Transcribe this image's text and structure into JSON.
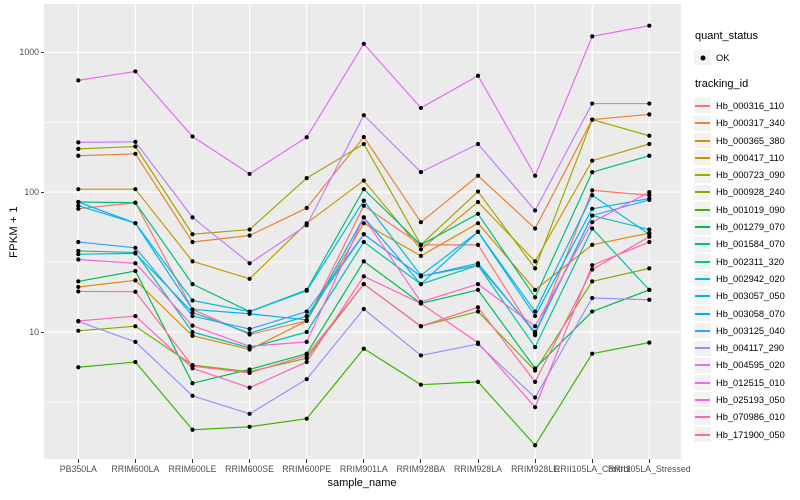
{
  "chart_data": {
    "type": "line",
    "title": "",
    "xlabel": "sample_name",
    "ylabel": "FPKM + 1",
    "y_scale": "log10",
    "grid": true,
    "legend_position": "right",
    "ylim": [
      1.4,
      1900
    ],
    "y_tick_labels": [
      "1000",
      "100",
      "10"
    ],
    "y_tick_values": [
      1000,
      100,
      10
    ],
    "y_minor_values": [
      316.23,
      31.62,
      3.162
    ],
    "categories": [
      "PB350LA",
      "RRIM600LA",
      "RRIM600LE",
      "RRIM600SE",
      "RRIM600PE",
      "RRIM901LA",
      "RRIM928BA",
      "RRIM928LA",
      "RRIM928LE",
      "RRII105LA_Control",
      "RRII105LA_Stressed"
    ],
    "marker": {
      "shape": "circle",
      "color": "#000000"
    },
    "series": [
      {
        "name": "Hb_000316_110",
        "color": "#F8766D",
        "values": [
          76,
          84,
          14.5,
          9.6,
          12,
          80,
          42,
          42,
          9.5,
          103,
          95
        ]
      },
      {
        "name": "Hb_000317_340",
        "color": "#EA8331",
        "values": [
          182,
          188,
          44,
          49,
          77,
          248,
          61,
          131,
          55,
          330,
          360
        ]
      },
      {
        "name": "Hb_000365_380",
        "color": "#D89000",
        "values": [
          21,
          23.4,
          9.4,
          7.5,
          12,
          60,
          35,
          60,
          20,
          42,
          51
        ]
      },
      {
        "name": "Hb_000417_110",
        "color": "#C09B00",
        "values": [
          105,
          105,
          32,
          24,
          60,
          121,
          39,
          85,
          32,
          168,
          221
        ]
      },
      {
        "name": "Hb_000723_090",
        "color": "#A3A500",
        "values": [
          204,
          212,
          50,
          54,
          126,
          221,
          42,
          101,
          28.5,
          330,
          253
        ]
      },
      {
        "name": "Hb_000928_240",
        "color": "#7CAE00",
        "values": [
          10.2,
          11,
          5.8,
          5.2,
          6.5,
          22,
          11,
          14,
          5.3,
          23,
          28.5
        ]
      },
      {
        "name": "Hb_001019_090",
        "color": "#39B600",
        "values": [
          5.6,
          6.1,
          2.0,
          2.1,
          2.4,
          7.6,
          4.2,
          4.4,
          1.55,
          7.0,
          8.4
        ]
      },
      {
        "name": "Hb_001279_070",
        "color": "#00BB4E",
        "values": [
          23,
          27.3,
          4.3,
          5.4,
          7,
          32,
          16,
          20,
          5.5,
          14,
          20
        ]
      },
      {
        "name": "Hb_001584_070",
        "color": "#00BF7D",
        "values": [
          85,
          84,
          22,
          14,
          20,
          105,
          42,
          70,
          17.7,
          139,
          182
        ]
      },
      {
        "name": "Hb_002311_320",
        "color": "#00C1A3",
        "values": [
          38,
          37,
          10,
          7.7,
          10,
          44,
          22,
          30,
          7.8,
          55,
          20
        ]
      },
      {
        "name": "Hb_002942_020",
        "color": "#00BFC4",
        "values": [
          36,
          36.5,
          13.8,
          9.8,
          13,
          50,
          25,
          31,
          9.8,
          68,
          54
        ]
      },
      {
        "name": "Hb_003057_050",
        "color": "#00BAE0",
        "values": [
          80,
          60,
          16.8,
          14,
          19.7,
          87,
          25.4,
          52,
          14,
          95,
          50
        ]
      },
      {
        "name": "Hb_003058_070",
        "color": "#00B0F6",
        "values": [
          85,
          60,
          14.5,
          13.5,
          12.2,
          66,
          22,
          52,
          13,
          76,
          90
        ]
      },
      {
        "name": "Hb_003125_040",
        "color": "#35A2FF",
        "values": [
          44,
          40,
          13,
          10.5,
          14,
          50,
          25,
          30,
          10,
          68,
          88
        ]
      },
      {
        "name": "Hb_004117_290",
        "color": "#9590FF",
        "values": [
          11.9,
          8.5,
          3.5,
          2.6,
          4.6,
          14.6,
          6.8,
          8.2,
          3.4,
          17.5,
          17
        ]
      },
      {
        "name": "Hb_004595_020",
        "color": "#C77CFF",
        "values": [
          227,
          229,
          66,
          31,
          58,
          355,
          139,
          221,
          74,
          430,
          430
        ]
      },
      {
        "name": "Hb_012515_010",
        "color": "#E76BF3",
        "values": [
          630,
          730,
          250,
          135,
          247,
          1150,
          400,
          680,
          131,
          1300,
          1550
        ]
      },
      {
        "name": "Hb_025193_050",
        "color": "#FA62DB",
        "values": [
          33,
          31,
          11.1,
          7.9,
          8.5,
          66,
          16.4,
          22,
          11,
          61,
          100
        ]
      },
      {
        "name": "Hb_070986_010",
        "color": "#FF62BC",
        "values": [
          12,
          13,
          5.5,
          4.0,
          6.1,
          25,
          16,
          8.4,
          2.9,
          30,
          44
        ]
      },
      {
        "name": "Hb_171900_050",
        "color": "#FF6A98",
        "values": [
          19.5,
          19.4,
          5.7,
          5.1,
          6.8,
          22,
          11,
          15,
          4.4,
          28,
          48
        ]
      }
    ]
  },
  "legend": {
    "quant_status": {
      "title": "quant_status",
      "item_label": "OK",
      "marker_color": "#000000"
    },
    "tracking_id": {
      "title": "tracking_id"
    }
  },
  "style": {
    "panel_bg": "#EBEBEB",
    "grid_color": "#FFFFFF",
    "axis_text_color": "#4D4D4D",
    "legend_key_bg": "#F2F2F2",
    "point_color": "#000000"
  }
}
